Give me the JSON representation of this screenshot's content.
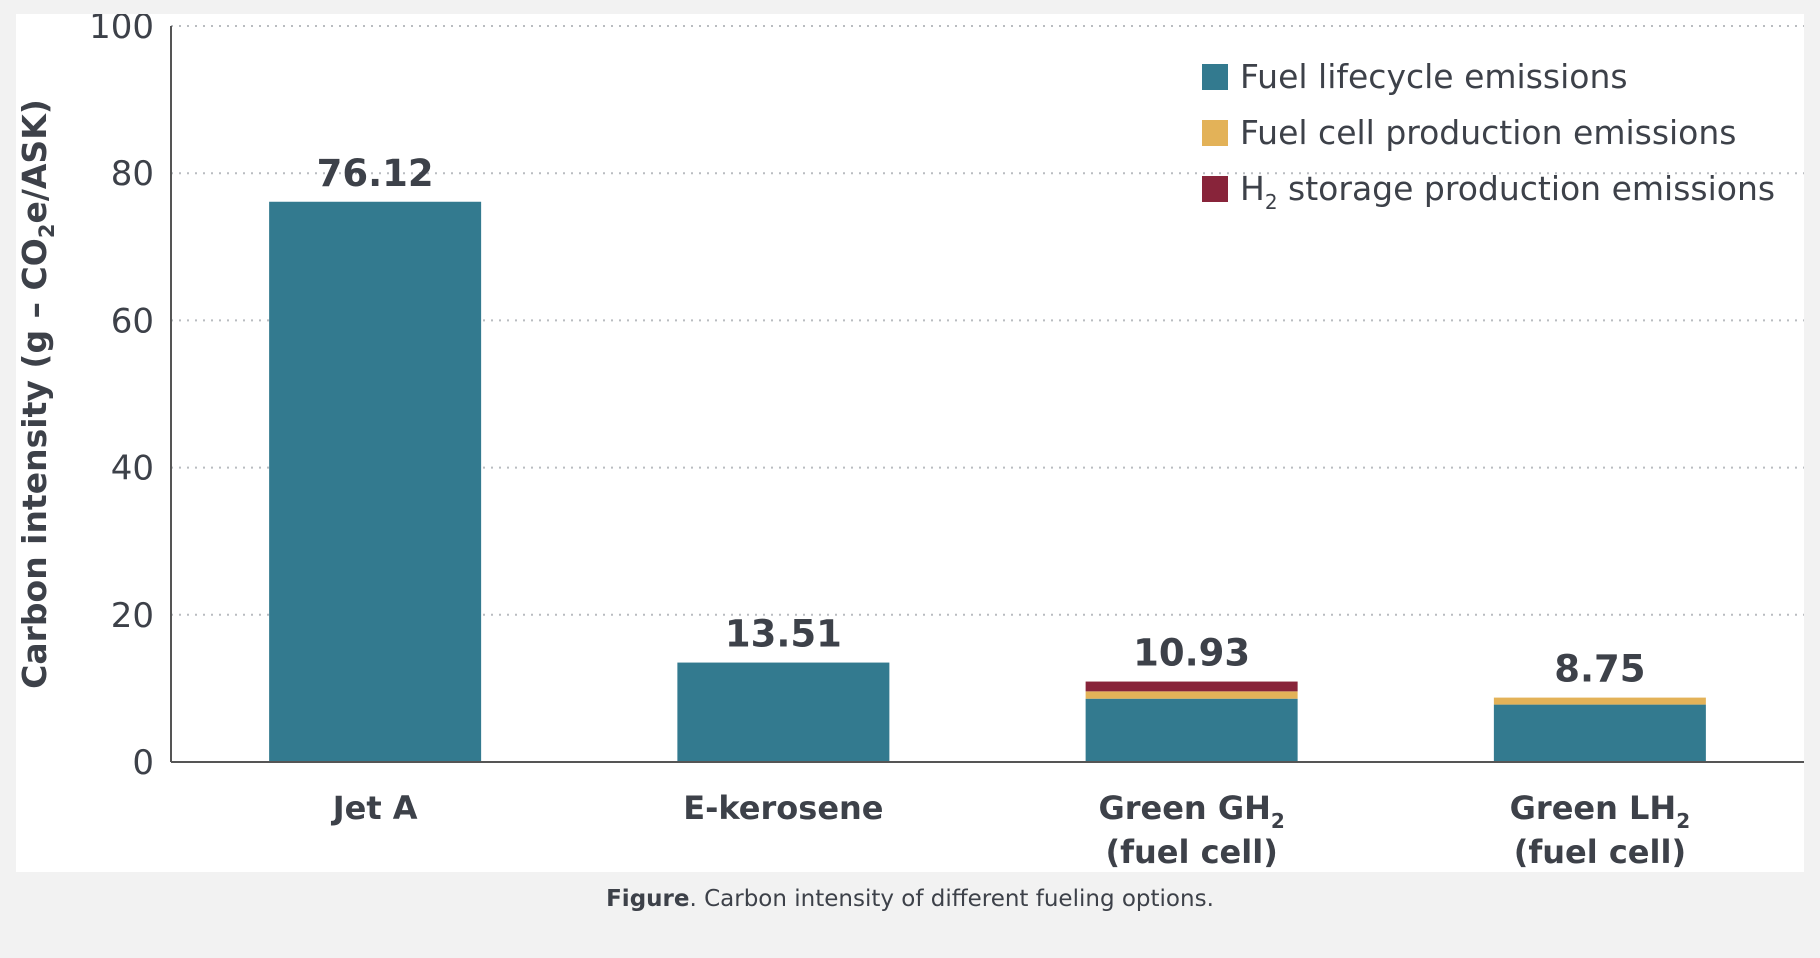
{
  "chart_data": {
    "type": "bar",
    "stacked": true,
    "categories": [
      "Jet A",
      "E-kerosene",
      "Green GH2 (fuel cell)",
      "Green LH2 (fuel cell)"
    ],
    "category_labels": [
      {
        "line1": "Jet A",
        "line1_sub": "",
        "line2": ""
      },
      {
        "line1": "E-kerosene",
        "line1_sub": "",
        "line2": ""
      },
      {
        "line1": "Green GH",
        "line1_sub": "2",
        "line2": "(fuel cell)"
      },
      {
        "line1": "Green LH",
        "line1_sub": "2",
        "line2": "(fuel cell)"
      }
    ],
    "series": [
      {
        "name": "Fuel lifecycle emissions",
        "name_main": "Fuel lifecycle emissions",
        "name_sub": "",
        "name_rest": "",
        "color": "#337a8f",
        "values": [
          76.12,
          13.51,
          8.6,
          7.8
        ]
      },
      {
        "name": "Fuel cell production emissions",
        "name_main": "Fuel cell production emissions",
        "name_sub": "",
        "name_rest": "",
        "color": "#e3b258",
        "values": [
          0,
          0,
          1.0,
          0.95
        ]
      },
      {
        "name": "H2 storage production emissions",
        "name_main": "H",
        "name_sub": "2",
        "name_rest": " storage production emissions",
        "color": "#88243a",
        "values": [
          0,
          0,
          1.33,
          0
        ]
      }
    ],
    "totals": [
      "76.12",
      "13.51",
      "10.93",
      "8.75"
    ],
    "ylabel": {
      "main": "Carbon intensity (g – CO",
      "sub": "2",
      "rest": "e/ASK)"
    },
    "xlabel": "",
    "ylim": [
      0,
      100
    ],
    "yticks": [
      0,
      20,
      40,
      60,
      80,
      100
    ],
    "grid": true,
    "grid_style": "dotted",
    "legend_position": "top-right"
  },
  "caption": {
    "label": "Figure",
    "text": ". Carbon intensity of different fueling options."
  }
}
